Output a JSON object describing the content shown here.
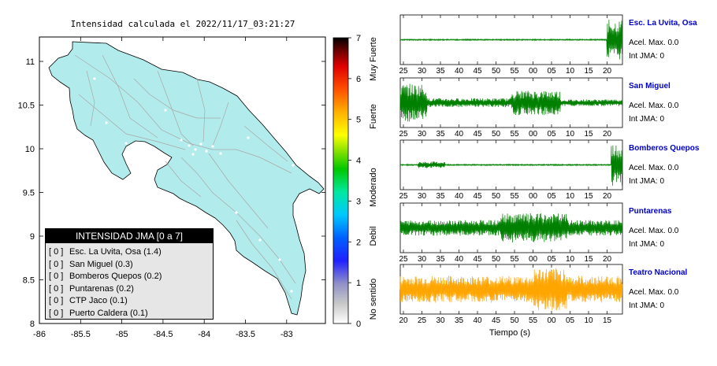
{
  "map": {
    "title": "Intensidad calculada el 2022/11/17_03:21:27",
    "lat_ticks": [
      "11",
      "10.5",
      "10",
      "9.5",
      "9",
      "8.5",
      "8"
    ],
    "lon_ticks": [
      "-86",
      "-85.5",
      "-85",
      "-84.5",
      "-84",
      "-83.5",
      "-83"
    ],
    "land_color": "#b2ebeb"
  },
  "colorbar": {
    "ticks": [
      "7",
      "6",
      "5",
      "4",
      "3",
      "2",
      "1",
      "0"
    ],
    "labels": [
      "Muy Fuerte",
      "Fuerte",
      "Moderado",
      "Debil",
      "No sentido"
    ]
  },
  "legend": {
    "title": "INTENSIDAD JMA [0 a 7]",
    "items": [
      {
        "flag": "[ 0 ]",
        "label": "Esc. La Uvita, Osa (1.4)"
      },
      {
        "flag": "[ 0 ]",
        "label": "San Miguel (0.3)"
      },
      {
        "flag": "[ 0 ]",
        "label": "Bomberos Quepos (0.2)"
      },
      {
        "flag": "[ 0 ]",
        "label": "Puntarenas (0.2)"
      },
      {
        "flag": "[ 0 ]",
        "label": "CTP Jaco (0.1)"
      },
      {
        "flag": "[ 0 ]",
        "label": "Puerto Caldera (0.1)"
      }
    ]
  },
  "stations": [
    {
      "name": "Esc. La Uvita, Osa",
      "acel": "Acel. Max. 0.0",
      "int": "Int JMA: 0",
      "color": "#008000",
      "ticks": [
        "25",
        "30",
        "35",
        "40",
        "45",
        "50",
        "55",
        "00",
        "05",
        "10",
        "15",
        "20"
      ]
    },
    {
      "name": "San Miguel",
      "acel": "Acel. Max. 0.0",
      "int": "Int JMA: 0",
      "color": "#008000",
      "ticks": [
        "25",
        "30",
        "35",
        "40",
        "45",
        "50",
        "55",
        "00",
        "05",
        "10",
        "15",
        "20"
      ]
    },
    {
      "name": "Bomberos Quepos",
      "acel": "Acel. Max. 0.0",
      "int": "Int JMA: 0",
      "color": "#008000",
      "ticks": [
        "25",
        "30",
        "35",
        "40",
        "45",
        "50",
        "55",
        "00",
        "05",
        "10",
        "15",
        "20"
      ]
    },
    {
      "name": "Puntarenas",
      "acel": "Acel. Max. 0.0",
      "int": "Int JMA: 0",
      "color": "#008000",
      "ticks": [
        "25",
        "30",
        "35",
        "40",
        "45",
        "50",
        "55",
        "00",
        "05",
        "10",
        "15",
        "20"
      ]
    },
    {
      "name": "Teatro Nacional",
      "acel": "Acel. Max. 0.0",
      "int": "Int JMA: 0",
      "color": "#ffa500",
      "ticks": [
        "20",
        "25",
        "30",
        "35",
        "40",
        "45",
        "50",
        "55",
        "00",
        "05",
        "10",
        "15"
      ]
    }
  ],
  "xaxis_label": "Tiempo (s)"
}
